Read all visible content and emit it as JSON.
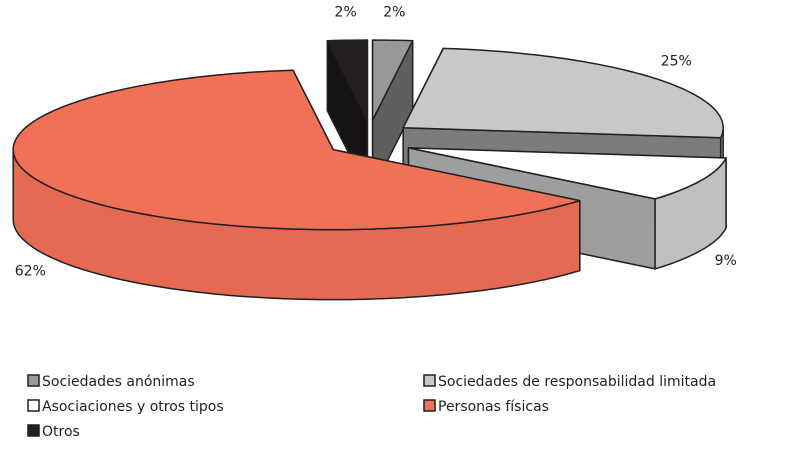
{
  "chart_data": {
    "type": "pie3d",
    "categories": [
      "Sociedades anónimas",
      "Sociedades de responsabilidad limitada",
      "Asociaciones y otros tipos",
      "Personas físicas",
      "Otros"
    ],
    "values": [
      2,
      25,
      9,
      62,
      2
    ],
    "value_labels": [
      "2%",
      "25%",
      "9%",
      "62%",
      "2%"
    ],
    "colors": [
      "#999999",
      "#c8c8c8",
      "#ffffff",
      "#f07058",
      "#231f20"
    ],
    "legend": "bottom"
  }
}
